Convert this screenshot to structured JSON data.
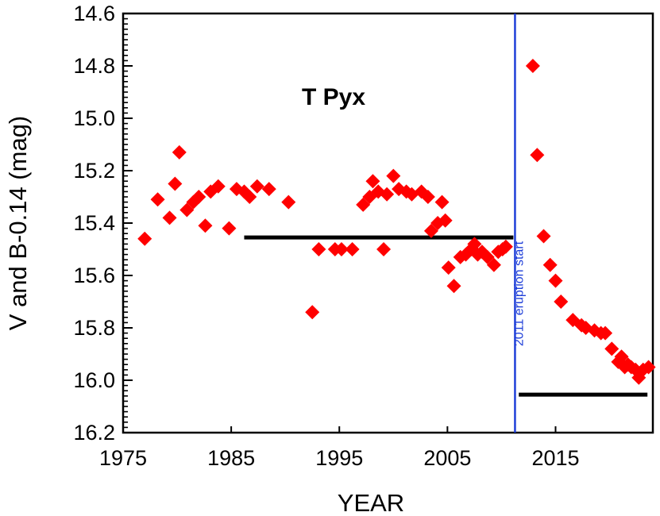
{
  "chart_data": {
    "type": "scatter",
    "title": "T Pyx",
    "xlabel": "YEAR",
    "ylabel": "V and B-0.14 (mag)",
    "xlim": [
      1975,
      2024
    ],
    "ylim": [
      14.6,
      16.2
    ],
    "y_inverted": true,
    "x_ticks": [
      1975,
      1985,
      1995,
      2005,
      2015
    ],
    "y_ticks": [
      "14.6",
      "14.8",
      "15.0",
      "15.2",
      "15.4",
      "15.6",
      "15.8",
      "16.0",
      "16.2"
    ],
    "grid": false,
    "series": [
      {
        "marker": "diamond",
        "color": "#ff0000",
        "points": [
          [
            1977.0,
            15.46
          ],
          [
            1978.2,
            15.31
          ],
          [
            1979.3,
            15.38
          ],
          [
            1979.8,
            15.25
          ],
          [
            1980.2,
            15.13
          ],
          [
            1980.9,
            15.35
          ],
          [
            1981.5,
            15.32
          ],
          [
            1982.0,
            15.3
          ],
          [
            1982.6,
            15.41
          ],
          [
            1983.1,
            15.28
          ],
          [
            1983.8,
            15.26
          ],
          [
            1984.8,
            15.42
          ],
          [
            1985.5,
            15.27
          ],
          [
            1986.2,
            15.28
          ],
          [
            1986.7,
            15.3
          ],
          [
            1987.4,
            15.26
          ],
          [
            1988.5,
            15.27
          ],
          [
            1990.3,
            15.32
          ],
          [
            1992.5,
            15.74
          ],
          [
            1993.1,
            15.5
          ],
          [
            1994.6,
            15.5
          ],
          [
            1995.2,
            15.5
          ],
          [
            1996.2,
            15.5
          ],
          [
            1997.2,
            15.33
          ],
          [
            1997.8,
            15.3
          ],
          [
            1998.1,
            15.24
          ],
          [
            1998.6,
            15.28
          ],
          [
            1999.1,
            15.5
          ],
          [
            1999.4,
            15.29
          ],
          [
            2000.0,
            15.22
          ],
          [
            2000.5,
            15.27
          ],
          [
            2001.2,
            15.28
          ],
          [
            2001.7,
            15.29
          ],
          [
            2002.6,
            15.28
          ],
          [
            2003.2,
            15.3
          ],
          [
            2003.5,
            15.43
          ],
          [
            2004.1,
            15.4
          ],
          [
            2004.5,
            15.32
          ],
          [
            2004.8,
            15.39
          ],
          [
            2005.1,
            15.57
          ],
          [
            2005.6,
            15.64
          ],
          [
            2006.2,
            15.53
          ],
          [
            2006.7,
            15.52
          ],
          [
            2007.2,
            15.5
          ],
          [
            2007.5,
            15.48
          ],
          [
            2007.8,
            15.52
          ],
          [
            2008.2,
            15.51
          ],
          [
            2008.7,
            15.53
          ],
          [
            2009.3,
            15.56
          ],
          [
            2009.7,
            15.51
          ],
          [
            2010.1,
            15.5
          ],
          [
            2010.4,
            15.49
          ],
          [
            2012.9,
            14.8
          ],
          [
            2013.3,
            15.14
          ],
          [
            2013.9,
            15.45
          ],
          [
            2014.5,
            15.56
          ],
          [
            2015.0,
            15.62
          ],
          [
            2015.5,
            15.7
          ],
          [
            2016.6,
            15.77
          ],
          [
            2017.4,
            15.79
          ],
          [
            2017.8,
            15.8
          ],
          [
            2018.6,
            15.81
          ],
          [
            2019.2,
            15.82
          ],
          [
            2019.6,
            15.82
          ],
          [
            2020.2,
            15.88
          ],
          [
            2020.8,
            15.93
          ],
          [
            2021.1,
            15.91
          ],
          [
            2021.4,
            15.95
          ],
          [
            2021.7,
            15.94
          ],
          [
            2022.0,
            15.95
          ],
          [
            2022.4,
            15.96
          ],
          [
            2022.7,
            15.99
          ],
          [
            2023.1,
            15.96
          ],
          [
            2023.6,
            15.95
          ]
        ]
      }
    ],
    "reference_lines": [
      {
        "type": "hline",
        "y": 15.455,
        "x_start": 1986.2,
        "x_end": 2011.1,
        "color": "#000000"
      },
      {
        "type": "hline",
        "y": 16.055,
        "x_start": 2011.6,
        "x_end": 2023.5,
        "color": "#000000"
      },
      {
        "type": "vline",
        "x": 2011.25,
        "color": "#1f3fd8"
      }
    ],
    "annotations": [
      {
        "text": "2011 eruption start",
        "x": 2011.7,
        "y": 15.87,
        "rotation": -90,
        "color": "#1f3fd8"
      }
    ]
  }
}
